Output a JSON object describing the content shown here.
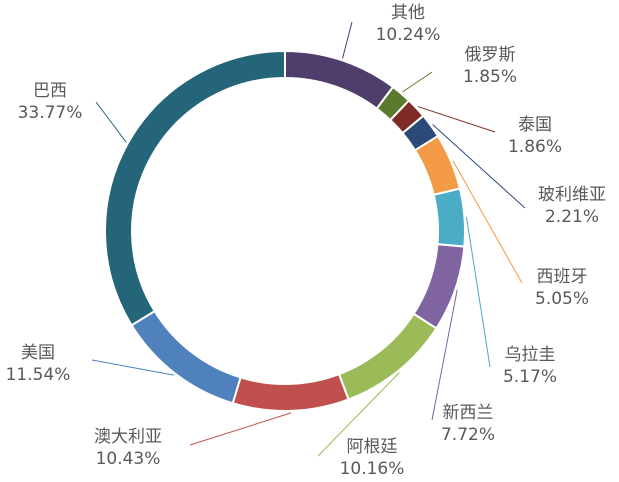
{
  "chart_data": {
    "type": "pie",
    "donut": true,
    "title": "",
    "legend": "none",
    "categories": [
      "其他",
      "俄罗斯",
      "泰国",
      "玻利维亚",
      "西班牙",
      "乌拉圭",
      "新西兰",
      "阿根廷",
      "澳大利亚",
      "美国",
      "巴西"
    ],
    "values": [
      10.24,
      1.85,
      1.86,
      2.21,
      5.05,
      5.17,
      7.72,
      10.16,
      10.43,
      11.54,
      33.77
    ],
    "value_labels": [
      "10.24%",
      "1.85%",
      "1.86%",
      "2.21%",
      "5.05%",
      "5.17%",
      "7.72%",
      "10.16%",
      "10.43%",
      "11.54%",
      "33.77%"
    ],
    "colors": [
      "#4f3d6b",
      "#5b7a2e",
      "#7f2b28",
      "#2c4a77",
      "#f29a45",
      "#4bacc6",
      "#8064a2",
      "#9bbb59",
      "#c0504d",
      "#4f81bd",
      "#24657a"
    ]
  }
}
